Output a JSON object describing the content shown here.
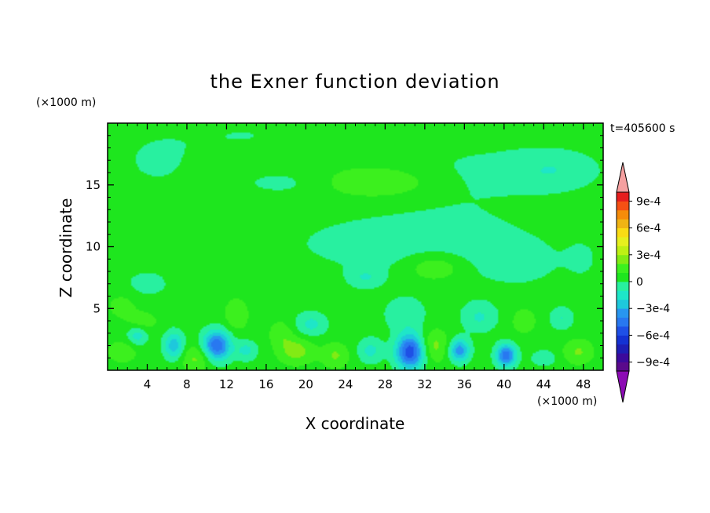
{
  "chart_data": {
    "type": "heatmap",
    "title": "the Exner function deviation",
    "xlabel": "X coordinate",
    "ylabel": "Z coordinate",
    "x_unit": "(×1000 m)",
    "y_unit": "(×1000 m)",
    "time_label": "t=405600 s",
    "xlim": [
      0,
      50
    ],
    "ylim": [
      0,
      20
    ],
    "x_ticks": [
      4,
      8,
      12,
      16,
      20,
      24,
      28,
      32,
      36,
      40,
      44,
      48
    ],
    "y_ticks": [
      5,
      10,
      15
    ],
    "grid": false,
    "colorbar": {
      "placement": "right",
      "levels": [
        -0.001,
        -0.0009,
        -0.0008,
        -0.0007,
        -0.0006,
        -0.0005,
        -0.0004,
        -0.0003,
        -0.0002,
        -0.0001,
        0,
        0.0001,
        0.0002,
        0.0003,
        0.0004,
        0.0005,
        0.0006,
        0.0007,
        0.0008,
        0.0009,
        0.001
      ],
      "colors": [
        "#5a0a8c",
        "#3c0a9c",
        "#1e1eb4",
        "#1432d2",
        "#1e50e6",
        "#2878f0",
        "#2896f0",
        "#1ec8dc",
        "#1ee6c8",
        "#28f0a0",
        "#1ee61e",
        "#3cf01e",
        "#82eb14",
        "#bef014",
        "#e6f01e",
        "#fadc14",
        "#f0b414",
        "#f58c0a",
        "#f55014",
        "#e61e1e"
      ],
      "under_color": "#8c0ab4",
      "over_color": "#f5a0a0",
      "tick_values": [
        0.0009,
        0.0006,
        0.0003,
        0,
        -0.0003,
        -0.0006,
        -0.0009
      ],
      "tick_labels": [
        "9e-4",
        "6e-4",
        "3e-4",
        "0",
        "−3e-4",
        "−6e-4",
        "−9e-4"
      ]
    },
    "background_value": 5e-05,
    "features": [
      {
        "x": 18,
        "z": 15.2,
        "rx": 5.2,
        "rz": 1.1,
        "v": -7e-05
      },
      {
        "x": 27,
        "z": 15.2,
        "rx": 5.5,
        "rz": 1.2,
        "v": 0.00017
      },
      {
        "x": 37,
        "z": 16,
        "rx": 8,
        "rz": 2.8,
        "v": -6e-05
      },
      {
        "x": 45,
        "z": 16.2,
        "rx": 4.5,
        "rz": 1.6,
        "v": -0.00013
      },
      {
        "x": 5,
        "z": 17,
        "rx": 5,
        "rz": 3,
        "v": -6e-05
      },
      {
        "x": 14,
        "z": 19,
        "rx": 6,
        "rz": 1.5,
        "v": -5e-05
      },
      {
        "x": 26,
        "z": 10.3,
        "rx": 12,
        "rz": 3,
        "v": -6e-05
      },
      {
        "x": 36,
        "z": 10,
        "rx": 9,
        "rz": 3,
        "v": -6e-05
      },
      {
        "x": 33,
        "z": 8.3,
        "rx": 2.8,
        "rz": 1.1,
        "v": 0.00018
      },
      {
        "x": 26,
        "z": 7.5,
        "rx": 1.6,
        "rz": 0.8,
        "v": -0.00013
      },
      {
        "x": 4,
        "z": 7,
        "rx": 3,
        "rz": 1.5,
        "v": -7e-05
      },
      {
        "x": 42,
        "z": 8.5,
        "rx": 4,
        "rz": 2,
        "v": -5e-05
      },
      {
        "x": 48,
        "z": 9,
        "rx": 2,
        "rz": 2,
        "v": -5e-05
      },
      {
        "x": 13,
        "z": 4.5,
        "rx": 1.2,
        "rz": 1.3,
        "v": 0.00014
      },
      {
        "x": 1.5,
        "z": 5.2,
        "rx": 1.3,
        "rz": 0.9,
        "v": 0.00013
      },
      {
        "x": 3.5,
        "z": 4,
        "rx": 1.5,
        "rz": 0.8,
        "v": 0.00012
      },
      {
        "x": 20.5,
        "z": 3.7,
        "rx": 1.6,
        "rz": 1,
        "v": -0.00018
      },
      {
        "x": 30,
        "z": 4.5,
        "rx": 2,
        "rz": 1.3,
        "v": -0.00014
      },
      {
        "x": 37.5,
        "z": 4.3,
        "rx": 1.8,
        "rz": 1.2,
        "v": -0.00016
      },
      {
        "x": 45.8,
        "z": 4.2,
        "rx": 1.2,
        "rz": 0.9,
        "v": -0.00015
      },
      {
        "x": 11,
        "z": 2,
        "rx": 1.4,
        "rz": 1.2,
        "v": -0.00055
      },
      {
        "x": 6.7,
        "z": 2,
        "rx": 1,
        "rz": 1.1,
        "v": -0.00032
      },
      {
        "x": 30.5,
        "z": 1.5,
        "rx": 1.4,
        "rz": 1.4,
        "v": -0.00062
      },
      {
        "x": 35.5,
        "z": 1.6,
        "rx": 1,
        "rz": 0.9,
        "v": -0.00042
      },
      {
        "x": 40.2,
        "z": 1.2,
        "rx": 1,
        "rz": 0.9,
        "v": -0.00052
      },
      {
        "x": 26.5,
        "z": 1.6,
        "rx": 1.3,
        "rz": 1,
        "v": -0.00018
      },
      {
        "x": 3,
        "z": 2.8,
        "rx": 1,
        "rz": 0.8,
        "v": -0.0002
      },
      {
        "x": 14,
        "z": 1.6,
        "rx": 1.1,
        "rz": 0.8,
        "v": -0.00018
      },
      {
        "x": 44,
        "z": 1,
        "rx": 1.2,
        "rz": 0.6,
        "v": -0.00015
      },
      {
        "x": 9,
        "z": 1,
        "rx": 1.6,
        "rz": 1.1,
        "v": 0.00018
      },
      {
        "x": 19,
        "z": 1.6,
        "rx": 1.8,
        "rz": 1.1,
        "v": 0.0002
      },
      {
        "x": 23,
        "z": 1.2,
        "rx": 1.4,
        "rz": 1,
        "v": 0.00016
      },
      {
        "x": 33,
        "z": 2,
        "rx": 1.4,
        "rz": 1.3,
        "v": 0.00018
      },
      {
        "x": 47.5,
        "z": 1.5,
        "rx": 1.5,
        "rz": 1,
        "v": 0.00016
      },
      {
        "x": 1.5,
        "z": 1.5,
        "rx": 1.5,
        "rz": 0.9,
        "v": 0.00013
      },
      {
        "x": 42,
        "z": 4,
        "rx": 1.2,
        "rz": 1,
        "v": 0.00013
      },
      {
        "x": 17.5,
        "z": 3,
        "rx": 1.2,
        "rz": 1,
        "v": 0.00012
      }
    ]
  }
}
